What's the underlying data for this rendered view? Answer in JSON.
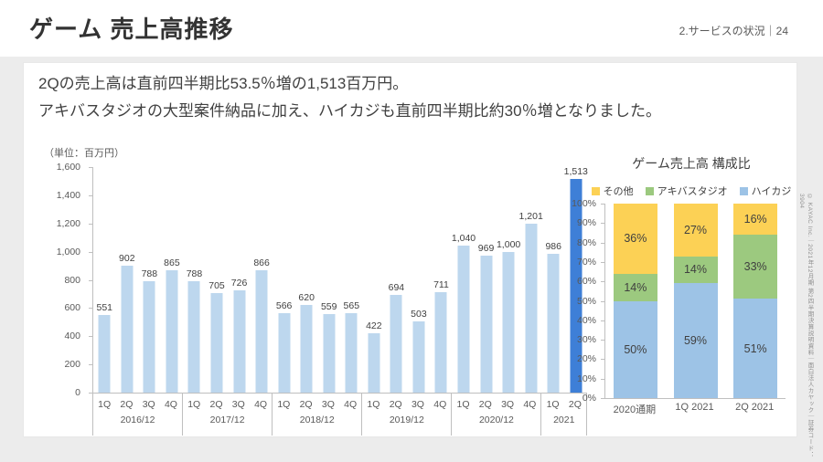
{
  "header": {
    "title": "ゲーム 売上高推移",
    "section_label": "2.サービスの状況｜24"
  },
  "summary": {
    "line1": "2Qの売上高は直前四半期比53.5％増の1,513百万円。",
    "line2": "アキバスタジオの大型案件納品に加え、ハイカジも直前四半期比約30％増となりました。"
  },
  "footer_vertical": "© KAYAC Inc.｜2021年12月期 第2四半期決算説明資料｜面白法人カヤック｜証券コード：3904",
  "chart_data": [
    {
      "type": "bar",
      "unit_label": "（単位：百万円）",
      "ylabel": "",
      "ylim": [
        0,
        1600
      ],
      "ytick_labels": [
        "1,600",
        "1,400",
        "1,200",
        "1,000",
        "800",
        "600",
        "400",
        "200",
        "0"
      ],
      "quarters": [
        "1Q",
        "2Q",
        "3Q",
        "4Q",
        "1Q",
        "2Q",
        "3Q",
        "4Q",
        "1Q",
        "2Q",
        "3Q",
        "4Q",
        "1Q",
        "2Q",
        "3Q",
        "4Q",
        "1Q",
        "2Q",
        "3Q",
        "4Q",
        "1Q",
        "2Q"
      ],
      "groups": [
        {
          "label": "2016/12",
          "count": 4
        },
        {
          "label": "2017/12",
          "count": 4
        },
        {
          "label": "2018/12",
          "count": 4
        },
        {
          "label": "2019/12",
          "count": 4
        },
        {
          "label": "2020/12",
          "count": 4
        },
        {
          "label": "2021",
          "count": 2
        }
      ],
      "values": [
        551,
        902,
        788,
        865,
        788,
        705,
        726,
        866,
        566,
        620,
        559,
        565,
        422,
        694,
        503,
        711,
        1040,
        969,
        1000,
        1201,
        986,
        1513
      ],
      "value_labels": [
        "551",
        "902",
        "788",
        "865",
        "788",
        "705",
        "726",
        "866",
        "566",
        "620",
        "559",
        "565",
        "422",
        "694",
        "503",
        "711",
        "1,040",
        "969",
        "1,000",
        "1,201",
        "986",
        "1,513"
      ],
      "highlight_index": 21,
      "bar_color": "#BDD7EE",
      "highlight_color": "#3E7FD7",
      "grid": false,
      "legend_position": "none"
    },
    {
      "type": "bar",
      "stacked": true,
      "title": "ゲーム売上高 構成比",
      "categories": [
        "2020通期",
        "1Q 2021",
        "2Q 2021"
      ],
      "legend": [
        {
          "label": "その他",
          "color": "#FCD155"
        },
        {
          "label": "アキバスタジオ",
          "color": "#9CC97F"
        },
        {
          "label": "ハイカジ",
          "color": "#9DC3E6"
        }
      ],
      "series": [
        {
          "name": "ハイカジ",
          "color": "#9DC3E6",
          "values": [
            50,
            59,
            51
          ]
        },
        {
          "name": "アキバスタジオ",
          "color": "#9CC97F",
          "values": [
            14,
            14,
            33
          ]
        },
        {
          "name": "その他",
          "color": "#FCD155",
          "values": [
            36,
            27,
            16
          ]
        }
      ],
      "ylim": [
        0,
        100
      ],
      "ytick_labels": [
        "100%",
        "90%",
        "80%",
        "70%",
        "60%",
        "50%",
        "40%",
        "30%",
        "20%",
        "10%",
        "0%"
      ],
      "grid": false,
      "legend_position": "top"
    }
  ]
}
